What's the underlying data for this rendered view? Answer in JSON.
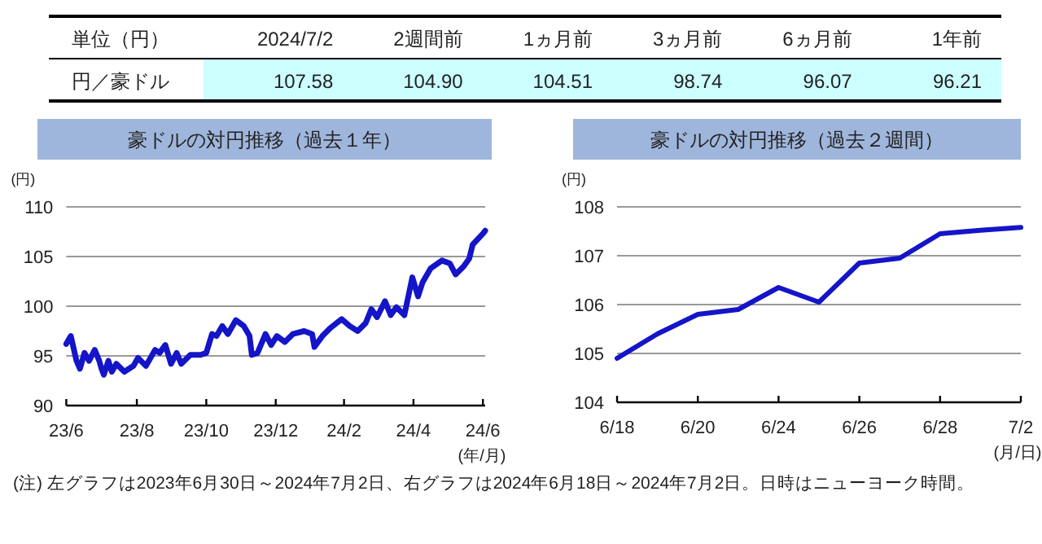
{
  "chart_data": [
    {
      "type": "other",
      "annotations": [
        "単位（円）"
      ],
      "categories": [
        "2024/7/2",
        "2週間前",
        "1ヵ月前",
        "3ヵ月前",
        "6ヵ月前",
        "1年前"
      ],
      "y_categories": [
        "円／豪ドル"
      ],
      "cell_labels": [
        [
          "107.58",
          "104.90",
          "104.51",
          "98.74",
          "96.07",
          "96.21"
        ]
      ]
    },
    {
      "type": "line",
      "title": "豪ドルの対円推移（過去１年）",
      "ylabel": "(円)",
      "xlabel": "(年/月)",
      "annotations": [
        "(注) 左グラフは2023年6月30日～2024年7月2日、右グラフは2024年6月18日～2024年7月2日。日時はニューヨーク時間。"
      ],
      "x": [
        "2023-06-30",
        "2023-07-04",
        "2023-07-09",
        "2023-07-12",
        "2023-07-16",
        "2023-07-20",
        "2023-07-25",
        "2023-07-29",
        "2023-07-31",
        "2023-08-02",
        "2023-08-06",
        "2023-08-09",
        "2023-08-13",
        "2023-08-20",
        "2023-08-28",
        "2023-09-01",
        "2023-09-08",
        "2023-09-16",
        "2023-09-20",
        "2023-09-25",
        "2023-09-30",
        "2023-10-05",
        "2023-10-09",
        "2023-10-17",
        "2023-10-26",
        "2023-10-31",
        "2023-11-05",
        "2023-11-09",
        "2023-11-14",
        "2023-11-19",
        "2023-11-26",
        "2023-12-03",
        "2023-12-08",
        "2023-12-10",
        "2023-12-15",
        "2023-12-22",
        "2023-12-27",
        "2024-01-01",
        "2024-01-08",
        "2024-01-15",
        "2024-01-25",
        "2024-02-01",
        "2024-02-03",
        "2024-02-10",
        "2024-02-17",
        "2024-02-27",
        "2024-03-05",
        "2024-03-12",
        "2024-03-19",
        "2024-03-24",
        "2024-03-29",
        "2024-04-05",
        "2024-04-10",
        "2024-04-15",
        "2024-04-22",
        "2024-04-29",
        "2024-05-04",
        "2024-05-08",
        "2024-05-15",
        "2024-05-25",
        "2024-06-01",
        "2024-06-06",
        "2024-06-13",
        "2024-06-18",
        "2024-06-21",
        "2024-06-25",
        "2024-06-30",
        "2024-07-02"
      ],
      "series": [
        {
          "color": "#1414c8",
          "values": [
            96.2,
            97.0,
            94.5,
            93.7,
            95.3,
            94.5,
            95.6,
            94.5,
            93.7,
            93.1,
            94.5,
            93.4,
            94.2,
            93.4,
            94.0,
            94.8,
            94.0,
            95.6,
            95.3,
            96.1,
            94.2,
            95.3,
            94.2,
            95.1,
            95.1,
            95.3,
            97.2,
            97.0,
            98.0,
            97.2,
            98.6,
            98.0,
            97.0,
            95.1,
            95.3,
            97.2,
            96.1,
            97.0,
            96.4,
            97.2,
            97.5,
            97.2,
            95.9,
            97.0,
            97.8,
            98.7,
            98.0,
            97.5,
            98.3,
            99.7,
            98.9,
            100.5,
            99.1,
            99.9,
            99.1,
            102.9,
            101.0,
            102.4,
            103.8,
            104.6,
            104.3,
            103.2,
            104.0,
            104.8,
            106.2,
            106.7,
            107.3,
            107.6
          ]
        }
      ],
      "xlim": [
        "2023-06-30",
        "2024-07-02"
      ],
      "xticks": [
        {
          "value": "2023-06-30",
          "label": "23/6"
        },
        {
          "value": "2023-08-31",
          "label": "23/8"
        },
        {
          "value": "2023-10-31",
          "label": "23/10"
        },
        {
          "value": "2023-12-31",
          "label": "23/12"
        },
        {
          "value": "2024-02-29",
          "label": "24/2"
        },
        {
          "value": "2024-04-30",
          "label": "24/4"
        },
        {
          "value": "2024-06-30",
          "label": "24/6"
        }
      ],
      "ylim": [
        90,
        110
      ],
      "yticks": [
        90,
        95,
        100,
        105,
        110
      ],
      "grid": "y"
    },
    {
      "type": "line",
      "title": "豪ドルの対円推移（過去２週間）",
      "ylabel": "(円)",
      "xlabel": "(月/日)",
      "categories": [
        "6/18",
        null,
        "6/20",
        null,
        "6/24",
        null,
        "6/26",
        null,
        "6/28",
        null,
        "7/2"
      ],
      "series": [
        {
          "color": "#1414c8",
          "values": [
            104.9,
            105.4,
            105.8,
            105.9,
            106.35,
            106.05,
            106.85,
            106.95,
            107.45,
            107.52,
            107.58
          ]
        }
      ],
      "ylim": [
        104,
        108
      ],
      "yticks": [
        104,
        105,
        106,
        107,
        108
      ],
      "grid": "y"
    }
  ]
}
